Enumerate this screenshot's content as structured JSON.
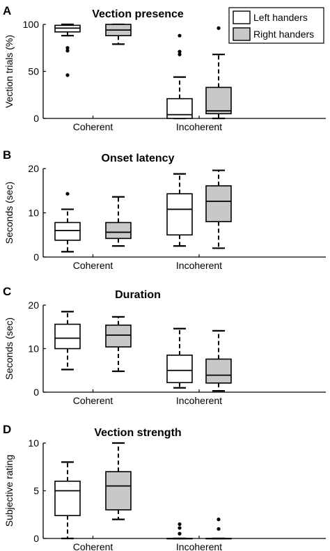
{
  "colors": {
    "left": "#ffffff",
    "right": "#c8c8c8",
    "stroke": "#000000"
  },
  "chart_data": [
    {
      "type": "box",
      "panel_letter": "A",
      "title": "Vection presence",
      "ylabel": "Vection trials (%)",
      "ylim": [
        0,
        100
      ],
      "yticks": [
        0,
        50,
        100
      ],
      "categories": [
        "Coherent",
        "Incoherent"
      ],
      "legend": {
        "placement": "top-right",
        "entries": [
          "Left handers",
          "Right handers"
        ]
      },
      "series": [
        {
          "name": "Left handers",
          "boxes": [
            {
              "whisker_low": 88,
              "q1": 92,
              "median": 96,
              "q3": 99,
              "whisker_high": 100,
              "outliers": [
                75,
                72,
                46
              ]
            },
            {
              "whisker_low": 0,
              "q1": 0,
              "median": 4,
              "q3": 21,
              "whisker_high": 44,
              "outliers": [
                88,
                71,
                68
              ]
            }
          ]
        },
        {
          "name": "Right handers",
          "boxes": [
            {
              "whisker_low": 79,
              "q1": 88,
              "median": 94,
              "q3": 100,
              "whisker_high": 100,
              "outliers": []
            },
            {
              "whisker_low": 0,
              "q1": 5,
              "median": 8,
              "q3": 33,
              "whisker_high": 68,
              "outliers": [
                96
              ]
            }
          ]
        }
      ]
    },
    {
      "type": "box",
      "panel_letter": "B",
      "title": "Onset latency",
      "ylabel": "Seconds (sec)",
      "ylim": [
        0,
        20
      ],
      "yticks": [
        0,
        10,
        20
      ],
      "categories": [
        "Coherent",
        "Incoherent"
      ],
      "series": [
        {
          "name": "Left handers",
          "boxes": [
            {
              "whisker_low": 1.2,
              "q1": 3.8,
              "median": 6.0,
              "q3": 7.8,
              "whisker_high": 10.8,
              "outliers": [
                14.3
              ]
            },
            {
              "whisker_low": 2.5,
              "q1": 5.0,
              "median": 10.8,
              "q3": 14.3,
              "whisker_high": 18.8,
              "outliers": []
            }
          ]
        },
        {
          "name": "Right handers",
          "boxes": [
            {
              "whisker_low": 2.5,
              "q1": 4.2,
              "median": 5.6,
              "q3": 7.8,
              "whisker_high": 13.6,
              "outliers": []
            },
            {
              "whisker_low": 2.0,
              "q1": 8.0,
              "median": 12.6,
              "q3": 16.1,
              "whisker_high": 19.6,
              "outliers": []
            }
          ]
        }
      ]
    },
    {
      "type": "box",
      "panel_letter": "C",
      "title": "Duration",
      "ylabel": "Seconds (sec)",
      "ylim": [
        0,
        20
      ],
      "yticks": [
        0,
        10,
        20
      ],
      "categories": [
        "Coherent",
        "Incoherent"
      ],
      "series": [
        {
          "name": "Left handers",
          "boxes": [
            {
              "whisker_low": 5.2,
              "q1": 10.0,
              "median": 12.4,
              "q3": 15.6,
              "whisker_high": 18.5,
              "outliers": []
            },
            {
              "whisker_low": 1.0,
              "q1": 2.2,
              "median": 5.0,
              "q3": 8.5,
              "whisker_high": 14.6,
              "outliers": []
            }
          ]
        },
        {
          "name": "Right handers",
          "boxes": [
            {
              "whisker_low": 4.8,
              "q1": 10.4,
              "median": 13.1,
              "q3": 15.4,
              "whisker_high": 17.3,
              "outliers": []
            },
            {
              "whisker_low": 0.3,
              "q1": 2.1,
              "median": 3.9,
              "q3": 7.6,
              "whisker_high": 14.1,
              "outliers": []
            }
          ]
        }
      ]
    },
    {
      "type": "box",
      "panel_letter": "D",
      "title": "Vection strength",
      "ylabel": "Subjective rating",
      "ylim": [
        0,
        10
      ],
      "yticks": [
        0,
        5,
        10
      ],
      "categories": [
        "Coherent",
        "Incoherent"
      ],
      "series": [
        {
          "name": "Left handers",
          "boxes": [
            {
              "whisker_low": 0,
              "q1": 2.4,
              "median": 5.0,
              "q3": 6.0,
              "whisker_high": 8.0,
              "outliers": []
            },
            {
              "whisker_low": 0,
              "q1": 0,
              "median": 0,
              "q3": 0,
              "whisker_high": 0,
              "outliers": [
                0.5,
                1.1,
                1.5
              ]
            }
          ]
        },
        {
          "name": "Right handers",
          "boxes": [
            {
              "whisker_low": 2.0,
              "q1": 3.0,
              "median": 5.5,
              "q3": 7.0,
              "whisker_high": 10.0,
              "outliers": []
            },
            {
              "whisker_low": 0,
              "q1": 0,
              "median": 0,
              "q3": 0,
              "whisker_high": 0,
              "outliers": [
                1.0,
                2.0
              ]
            }
          ]
        }
      ]
    }
  ]
}
